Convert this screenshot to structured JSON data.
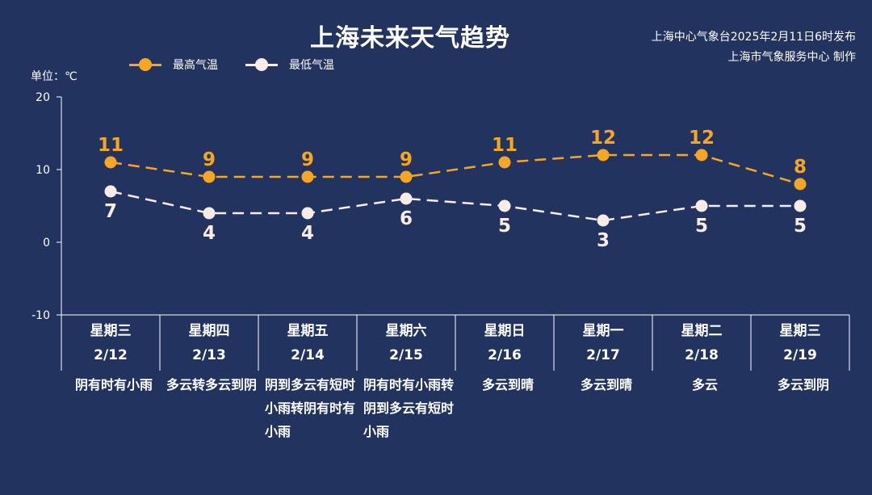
{
  "title": "上海未来天气趋势",
  "source_line1": "上海中心气象台2025年2月11日6时发布",
  "source_line2": "上海市气象服务中心 制作",
  "unit_label": "单位：℃",
  "colors": {
    "background": "#233360",
    "high": "#f6a623",
    "low": "#f7ece6",
    "axis": "#ffffff"
  },
  "chart_data": {
    "type": "line",
    "ylim": [
      -10,
      20
    ],
    "yticks": [
      "20",
      "10",
      "0",
      "-10"
    ],
    "legend_position": "top-left",
    "categories": [
      "2/12",
      "2/13",
      "2/14",
      "2/15",
      "2/16",
      "2/17",
      "2/18",
      "2/19"
    ],
    "weekdays": [
      "星期三",
      "星期四",
      "星期五",
      "星期六",
      "星期日",
      "星期一",
      "星期二",
      "星期三"
    ],
    "weather": [
      "阴有时有小雨",
      "多云转多云到阴",
      "阴到多云有短时小雨转阴有时有小雨",
      "阴有时有小雨转阴到多云有短时小雨",
      "多云到晴",
      "多云到晴",
      "多云",
      "多云到阴"
    ],
    "series": [
      {
        "name": "最高气温",
        "values": [
          11,
          9,
          9,
          9,
          11,
          12,
          12,
          8
        ]
      },
      {
        "name": "最低气温",
        "values": [
          7,
          4,
          4,
          6,
          5,
          3,
          5,
          5
        ]
      }
    ]
  }
}
